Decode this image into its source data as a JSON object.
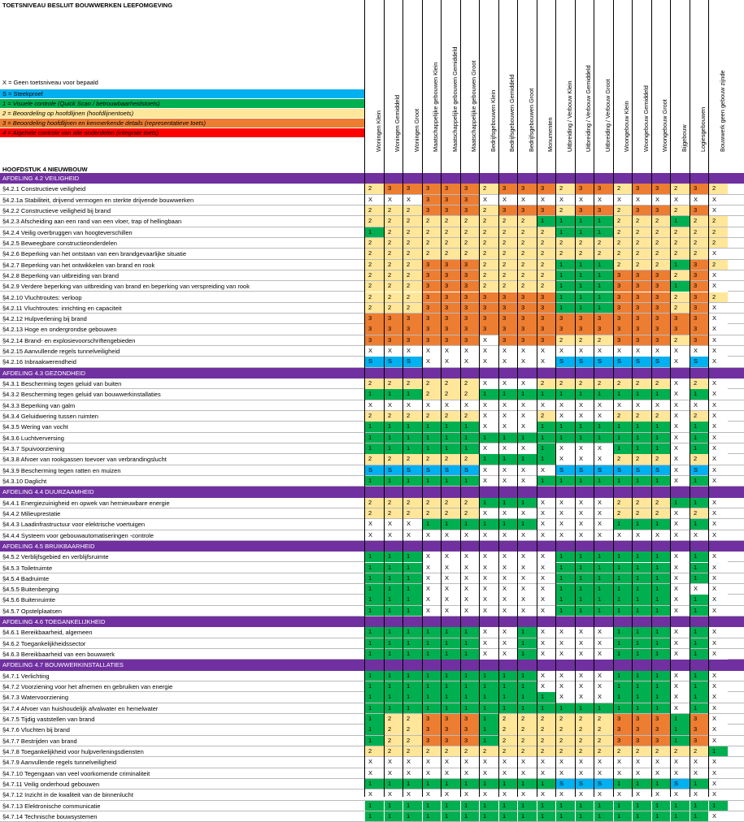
{
  "title": "TOETSNIVEAU BESLUIT BOUWWERKEN LEEFOMGEVING",
  "legend_x": "X = Geen toetsniveau voor bepaald",
  "legend": [
    {
      "label": "S = Steekproef",
      "color": "#00b0f0",
      "italic": false
    },
    {
      "label": "1 = Visuele controle (Quick Scan / betrouwbaarheidstoets)",
      "color": "#00b050",
      "italic": true
    },
    {
      "label": "2 = Beoordeling op hoofdlijnen (hoofdlijnentoets)",
      "color": "#ffe699",
      "italic": true
    },
    {
      "label": "3 = Beoordeling hoofdlijnen en kenmerkende details (representatieve toets)",
      "color": "#ed7d31",
      "italic": true
    },
    {
      "label": "4 = Algehele controle van alle onderdelen (integrale toets)",
      "color": "#ff0000",
      "italic": true
    }
  ],
  "chapter": "HOOFDSTUK 4 NIEUWBOUW",
  "colors": {
    "S": "#00b0f0",
    "1": "#00b050",
    "2": "#ffe699",
    "3": "#ed7d31",
    "4": "#ff0000",
    "X": "#ffffff",
    "section": "#7030a0"
  },
  "columns": [
    "Woningen Klein",
    "Woningen Gemiddeld",
    "Woningen Groot",
    "Maatschappelijke gebouwen Klein",
    "Maatschappelijke gebouwen Gemiddeld",
    "Maatschappelijke gebouwen Groot",
    "Bedrijfsgebouwen Klein",
    "Bedrijfsgebouwen Gemiddeld",
    "Bedrijfsgebouwen Groot",
    "Monumenten",
    "Uitbreiding / Verbouw Klein",
    "Uitbreiding / Verbouw Gemiddeld",
    "Uitbreiding / Verbouw Groot",
    "Woongebouw Klein",
    "Woongebouw Gemiddeld",
    "Woongebouw Groot",
    "Bijgebouw",
    "Logiesgebouwen",
    "Bouwwerk geen gebouw zijnde"
  ],
  "rows": [
    {
      "section": "AFDELING 4.2 VEILIGHEID"
    },
    {
      "label": "§4.2.1 Constructieve veiligheid",
      "v": "2 3 3 3 3 3 2 3 3 3 2 3 3 2 3 3 2 3 2"
    },
    {
      "label": "§4.2.1a Stabiliteit, drijvend vermogen en sterkte drijvende bouwwerken",
      "v": "X X X 3 3 3 X X X X X X X X X X X X X"
    },
    {
      "label": "§4.2.2 Constructieve veiligheid bij brand",
      "v": "2 2 2 3 3 3 2 3 3 3 2 3 3 2 3 3 2 3 X"
    },
    {
      "label": "§4.2.3 Afscheiding aan een rand van een vloer, trap of hellingbaan",
      "v": "2 2 2 2 2 2 2 2 2 1 1 1 1 2 2 2 1 2 2"
    },
    {
      "label": "§4.2.4 Veilig overbruggen van hoogteverschillen",
      "v": "1 2 2 2 2 2 2 2 2 2 1 1 1 2 2 2 2 2 2"
    },
    {
      "label": "§4.2.5 Beweegbare constructieonderdelen",
      "v": "2 2 2 2 2 2 2 2 2 2 2 2 2 2 2 2 2 2 2"
    },
    {
      "label": "§4.2.6 Beperking van het ontstaan van een brandgevaarlijke situatie",
      "v": "2 2 2 2 2 2 2 2 2 2 2 2 2 2 2 2 2 2 X"
    },
    {
      "label": "§4.2.7 Beperking van het ontwikkelen van brand en rook",
      "v": "2 2 2 3 3 3 2 2 2 2 1 1 1 2 2 2 1 3 2"
    },
    {
      "label": "§4.2.8 Beperking van uitbreiding van brand",
      "v": "2 2 2 3 3 3 2 2 2 2 1 1 1 3 3 3 2 3 X"
    },
    {
      "label": "§4.2.9 Verdere beperking van uitbreiding van brand en beperking van verspreiding van rook",
      "v": "2 2 2 3 3 3 2 2 2 2 1 1 1 3 3 3 1 3 X"
    },
    {
      "label": "§4.2.10 Vluchtroutes: verloop",
      "v": "2 2 2 3 3 3 3 3 3 3 1 1 1 3 3 3 2 3 2"
    },
    {
      "label": "§4.2.11 Vluchtroutes: inrichting en capaciteit",
      "v": "2 2 2 3 3 3 3 3 3 3 1 1 1 3 3 3 2 3 X"
    },
    {
      "label": "§4.2.12 Hulpverlening bij brand",
      "v": "3 3 3 3 3 3 3 3 3 3 3 3 3 3 3 3 3 3 X"
    },
    {
      "label": "§4.2.13 Hoge en ondergrondse gebouwen",
      "v": "3 3 3 3 3 3 3 3 3 3 3 3 3 3 3 3 3 3 X"
    },
    {
      "label": "§4.2.14 Brand- en explosievoorschriftengebieden",
      "v": "3 3 3 3 3 3 X 3 3 3 2 2 2 3 3 3 2 3 X"
    },
    {
      "label": "§4.2.15 Aanvullende regels tunnelveiligheid",
      "v": "X X X X X X X X X X X X X X X X X X X"
    },
    {
      "label": "§4.2.16 Inbraakwerendheid",
      "v": "S S S X X X X X X X S S S S S S X S X"
    },
    {
      "section": "AFDELING 4.3 GEZONDHEID"
    },
    {
      "label": "§4.3.1 Bescherming tegen geluid van buiten",
      "v": "2 2 2 2 2 2 X X X 2 2 2 2 2 2 2 X 2 X"
    },
    {
      "label": "§4.3.2 Bescherming tegen geluid van bouwwerkinstallaties",
      "v": "1 1 1 2 2 2 1 1 1 1 1 1 1 1 1 1 X 1 X"
    },
    {
      "label": "§4.3.3 Beperking van galm",
      "v": "X X X X X X X X X X X X X X X X X X X"
    },
    {
      "label": "§4.3.4 Geluidwering tussen ruimten",
      "v": "2 2 2 2 2 2 X X X 2 X X X 2 2 2 X 2 X"
    },
    {
      "label": "§4.3.5 Wering van vocht",
      "v": "1 1 1 1 1 1 X X X 1 1 1 1 1 1 1 X 1 X"
    },
    {
      "label": "§4.3.6 Luchtverversing",
      "v": "1 1 1 1 1 1 1 1 1 1 1 1 1 1 1 1 X 1 X"
    },
    {
      "label": "§4.3.7 Spuivoorziening",
      "v": "1 1 1 1 1 1 X X X 1 X X X 1 1 1 X 1 X"
    },
    {
      "label": "§4.3.8 Afvoer van rookgassen toevoer van verbrandingslucht",
      "v": "2 2 2 2 2 2 1 1 1 1 X X X 2 2 2 X 2 X"
    },
    {
      "label": "§4.3.9 Bescherming tegen ratten en muizen",
      "v": "S S S S S S X X X X S S S S S S X S X"
    },
    {
      "label": "§4.3.10 Daglicht",
      "v": "1 1 1 1 1 1 X X X 1 1 1 1 1 1 1 X 1 X"
    },
    {
      "section": "AFDELING 4.4 DUURZAAMHEID"
    },
    {
      "label": "§4.4.1 Energiezuinigheid en opwek van hernieuwbare energie",
      "v": "2 2 2 2 2 2 1 1 1 X X X X 2 2 2 1 1 X"
    },
    {
      "label": "§4.4.2 Milieuprestatie",
      "v": "2 2 2 2 2 2 X X X X X X X 2 2 2 X 2 X"
    },
    {
      "label": "§4.4.3 Laadinfrastructuur voor elektrische voertuigen",
      "v": "X X X 1 1 1 1 1 1 X X X X 1 1 1 X 1 X"
    },
    {
      "label": "§4.4.4 Systeem voor gebouwautomatiseringen -controle",
      "v": "X X X X X X X X X X X X X X X X X X X"
    },
    {
      "section": "AFDELING 4.5 BRUIKBAARHEID"
    },
    {
      "label": "§4.5.2 Verblijfsgebied en verblijfsruimte",
      "v": "1 1 1 X X X X X X X 1 1 1 1 1 1 X 1 X"
    },
    {
      "label": "§4.5.3 Toiletruimte",
      "v": "1 1 1 X X X X X X X 1 1 1 1 1 1 X 1 X"
    },
    {
      "label": "§4.5.4 Badruimte",
      "v": "1 1 1 X X X X X X X 1 1 1 1 1 1 X 1 X"
    },
    {
      "label": "§4.5.5 Buitenberging",
      "v": "1 1 1 X X X X X X X 1 1 1 1 1 1 X X X"
    },
    {
      "label": "§4.5.6 Buitenruimte",
      "v": "1 1 1 X X X X X X X 1 1 1 1 1 1 X 1 X"
    },
    {
      "label": "§4.5.7 Opstelplaatsen",
      "v": "1 1 1 X X X X X X X 1 1 1 1 1 1 X 1 X"
    },
    {
      "section": "AFDELING 4.6 TOEGANKELIJKHEID"
    },
    {
      "label": "§4.6.1 Bereikbaarheid, algemeen",
      "v": "1 1 1 1 1 1 X X 1 X X X X 1 1 1 X 1 X"
    },
    {
      "label": "§4.6.2 Toegankelijkheidssector",
      "v": "1 1 1 1 1 1 X X 1 X X X X 1 1 1 X 1 X"
    },
    {
      "label": "§4.6.3 Bereikbaarheid van een bouwwerk",
      "v": "1 1 1 1 1 1 X X 1 X X X X 1 1 1 X 1 X"
    },
    {
      "section": "AFDELING 4.7 BOUWWERKINSTALLATIES"
    },
    {
      "label": "§4.7.1 Verlichting",
      "v": "1 1 1 1 1 1 1 1 1 X X X X 1 1 1 X 1 X"
    },
    {
      "label": "§4.7.2 Voorziening voor het afnemen en gebruiken van energie",
      "v": "1 1 1 1 1 1 1 1 1 X X X X 1 1 1 X 1 X"
    },
    {
      "label": "§4.7.3 Watervoorziening",
      "v": "1 1 1 1 1 1 1 1 1 1 X X X 1 1 1 X 1 X"
    },
    {
      "label": "§4.7.4 Afvoer van huishoudelijk afvalwater en hemelwater",
      "v": "1 1 1 1 1 1 1 1 1 1 1 1 1 1 1 1 X 1 X"
    },
    {
      "label": "§4.7.5 Tijdig vaststellen van brand",
      "v": "1 2 2 3 3 3 1 2 2 2 2 2 2 3 3 3 1 3 X"
    },
    {
      "label": "§4.7.6 Vluchten bij brand",
      "v": "1 2 2 3 3 3 1 2 2 2 2 2 2 3 3 3 1 3 X"
    },
    {
      "label": "§4.7.7 Bestrijden van brand",
      "v": "1 2 2 3 3 3 1 2 2 2 2 2 2 3 3 3 1 3 X"
    },
    {
      "label": "§4.7.8 Toegankelijkheid voor hulpverleningsdiensten",
      "v": "2 2 2 2 2 2 2 2 2 2 2 2 2 2 2 2 2 2 1"
    },
    {
      "label": "§4.7.9 Aanvullende regels tunnelveiligheid",
      "v": "X X X X X X X X X X X X X X X X X X X"
    },
    {
      "label": "§4.7.10 Tegengaan van veel voorkomende criminaliteit",
      "v": "X X X X X X X X X X X X X X X X X X X"
    },
    {
      "label": "§4.7.11 Veilig onderhoud gebouwen",
      "v": "1 1 1 1 1 1 1 1 1 1 S S S 1 1 1 S 1 X"
    },
    {
      "label": "§4.7.12 Inzicht in de kwaliteit van de binnenlucht",
      "v": "X X X X X X X X X X X X X X X X X X X"
    },
    {
      "label": "§4.7.13 Elektronische communicatie",
      "v": "1 1 1 1 1 1 1 1 1 1 1 1 1 1 1 1 1 1 1"
    },
    {
      "label": "§4.7.14 Technische bouwsystemen",
      "v": "1 1 1 1 1 1 1 1 1 1 1 1 1 1 1 1 1 1 X"
    }
  ]
}
